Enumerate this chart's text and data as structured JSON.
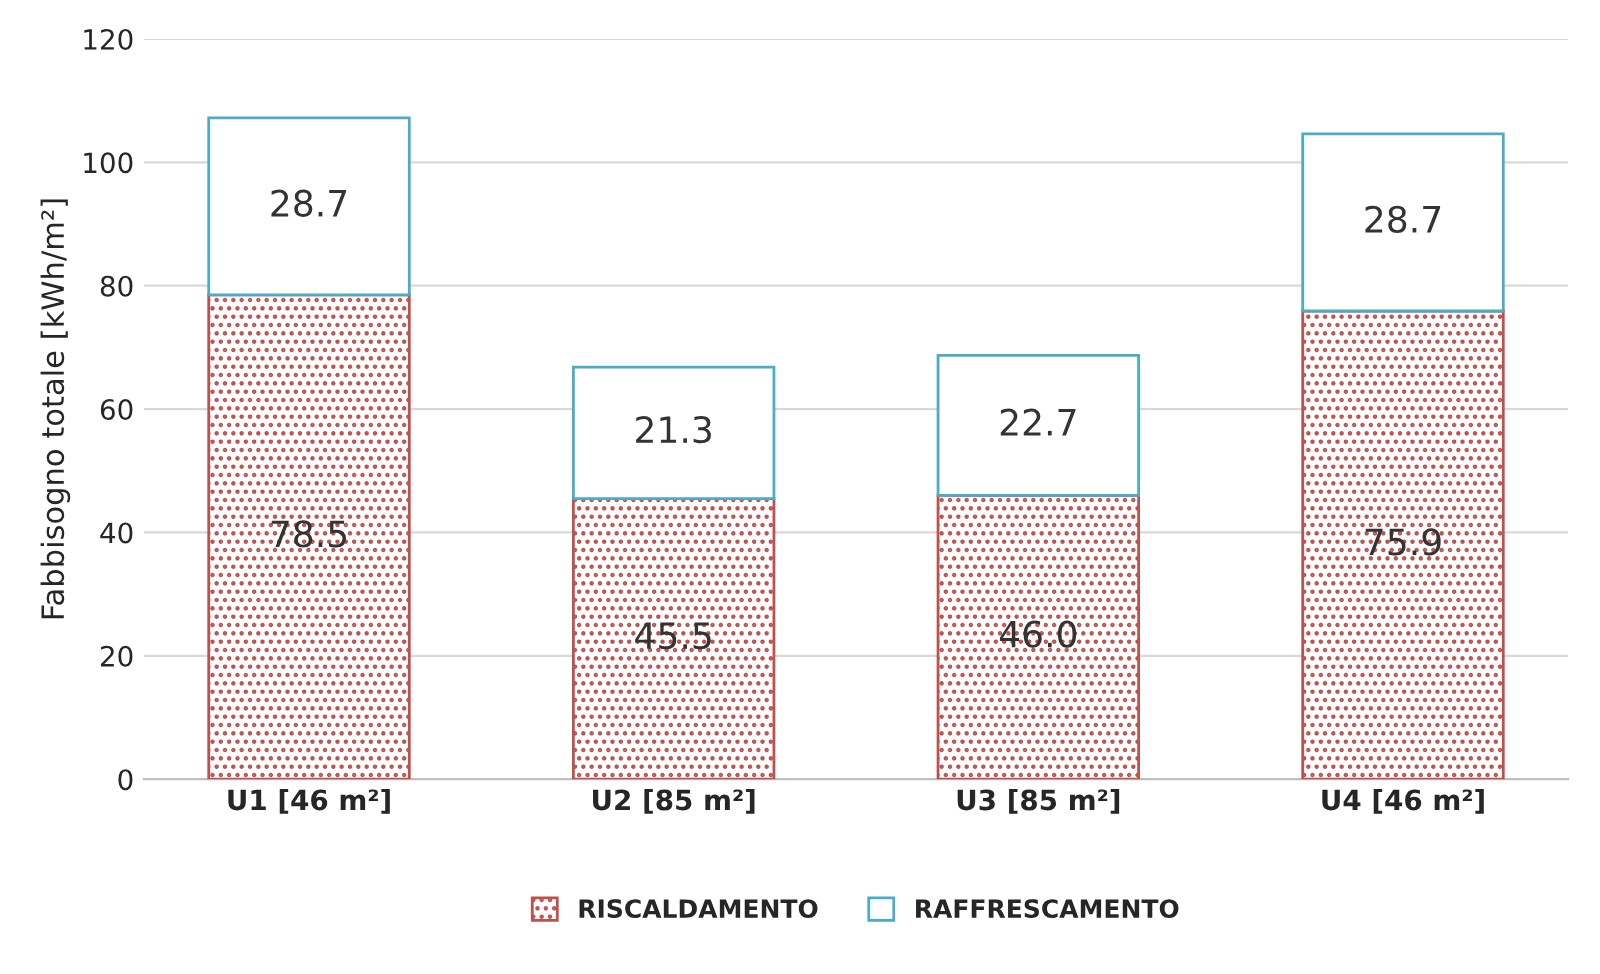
{
  "chart_data": {
    "type": "bar",
    "stacked": true,
    "ylabel": "Fabbisogno totale [kWh/m²]",
    "categories": [
      "U1 [46 m²]",
      "U2 [85 m²]",
      "U3 [85 m²]",
      "U4 [46 m²]"
    ],
    "series": [
      {
        "name": "RISCALDAMENTO",
        "color": "#c0504d",
        "values": [
          78.5,
          45.5,
          46.0,
          75.9
        ],
        "value_labels": [
          "78.5",
          "45.5",
          "46.0",
          "75.9"
        ]
      },
      {
        "name": "RAFFRESCAMENTO",
        "color": "#4bacc6",
        "values": [
          28.7,
          21.3,
          22.7,
          28.7
        ],
        "value_labels": [
          "28.7",
          "21.3",
          "22.7",
          "28.7"
        ]
      }
    ],
    "ylim": [
      0,
      120
    ],
    "yticks": [
      0,
      20,
      40,
      60,
      80,
      100,
      120
    ],
    "grid": "y",
    "legend": "bottom"
  }
}
